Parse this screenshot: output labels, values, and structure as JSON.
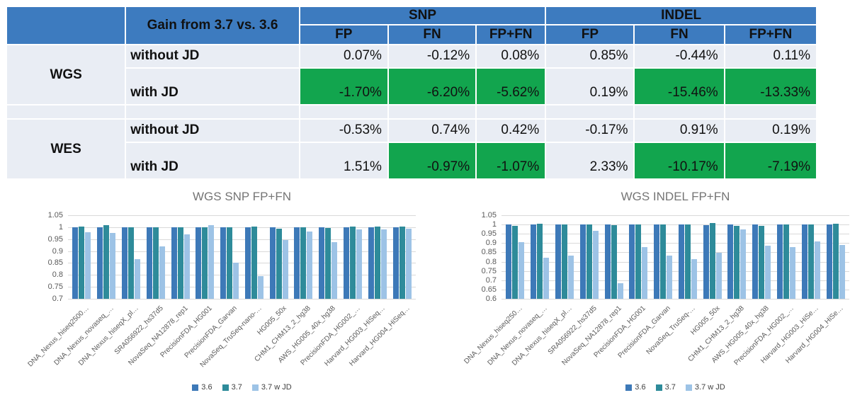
{
  "colors": {
    "header_blue": "#3d7bbf",
    "row_bg": "#e9edf4",
    "highlight_green": "#12a54e",
    "grid": "#d9d9d9",
    "axis_text": "#595959",
    "title_text": "#757575"
  },
  "table": {
    "gain_header": "Gain from 3.7 vs. 3.6",
    "groups": [
      "SNP",
      "INDEL"
    ],
    "subheaders": [
      "FP",
      "FN",
      "FP+FN"
    ],
    "rows": [
      {
        "section": "WGS",
        "condition": "without JD",
        "values": [
          "0.07%",
          "-0.12%",
          "0.08%",
          "0.85%",
          "-0.44%",
          "0.11%"
        ],
        "green": [
          false,
          false,
          false,
          false,
          false,
          false
        ]
      },
      {
        "section": "WGS",
        "condition": "with JD",
        "values": [
          "-1.70%",
          "-6.20%",
          "-5.62%",
          "0.19%",
          "-15.46%",
          "-13.33%"
        ],
        "green": [
          true,
          true,
          true,
          false,
          true,
          true
        ]
      },
      {
        "section": "WES",
        "condition": "without JD",
        "values": [
          "-0.53%",
          "0.74%",
          "0.42%",
          "-0.17%",
          "0.91%",
          "0.19%"
        ],
        "green": [
          false,
          false,
          false,
          false,
          false,
          false
        ]
      },
      {
        "section": "WES",
        "condition": "with JD",
        "values": [
          "1.51%",
          "-0.97%",
          "-1.07%",
          "2.33%",
          "-10.17%",
          "-7.19%"
        ],
        "green": [
          false,
          true,
          true,
          false,
          true,
          true
        ]
      }
    ]
  },
  "chart_data": [
    {
      "type": "bar",
      "title": "WGS SNP FP+FN",
      "ylim": [
        0.7,
        1.05
      ],
      "yticks": [
        "1.05",
        "1",
        "0.95",
        "0.9",
        "0.85",
        "0.8",
        "0.75",
        "0.7"
      ],
      "grid": true,
      "legend_position": "bottom",
      "categories": [
        "DNA_Nexus_hiseq2500…",
        "DNA_Nexus_novaseq_…",
        "DNA_Nexus_hiseqX_pl…",
        "SRA056922_hs37d5",
        "NovaSeq_NA12878_rep1",
        "PrecisionFDA_HG001",
        "PrecisionFDA_Garvan",
        "NovaSeq_TruSeq-nano-…",
        "HG005_50x",
        "CHM1_CHM13_2_hg38",
        "AWS_HG005_40x_hg38",
        "PrecisionFDA_HG002_…",
        "Harvard_HG003_HiSeq…",
        "Harvard_HG004_HiSeq…"
      ],
      "series": [
        {
          "name": "3.6",
          "color": "#3d79b8",
          "values": [
            1.0,
            1.0,
            1.0,
            1.0,
            1.0,
            1.0,
            1.0,
            1.0,
            1.0,
            1.0,
            1.0,
            1.0,
            1.0,
            1.0
          ]
        },
        {
          "name": "3.7",
          "color": "#2e8b9a",
          "values": [
            1.004,
            1.009,
            1.0,
            1.0,
            1.001,
            1.0,
            1.0,
            1.002,
            0.993,
            1.0,
            0.996,
            1.003,
            1.003,
            1.003
          ]
        },
        {
          "name": "3.7 w JD",
          "color": "#9dc3e6",
          "values": [
            0.978,
            0.977,
            0.865,
            0.92,
            0.97,
            1.008,
            0.85,
            0.795,
            0.946,
            0.981,
            0.937,
            0.99,
            0.991,
            0.994
          ]
        }
      ]
    },
    {
      "type": "bar",
      "title": "WGS INDEL FP+FN",
      "ylim": [
        0.6,
        1.05
      ],
      "yticks": [
        "1.05",
        "1",
        "0.95",
        "0.9",
        "0.85",
        "0.8",
        "0.75",
        "0.7",
        "0.65",
        "0.6"
      ],
      "grid": true,
      "legend_position": "bottom",
      "categories": [
        "DNA_Nexus_hiseq250…",
        "DNA_Nexus_novaseq_…",
        "DNA_Nexus_hiseqX_pl…",
        "SRA056922_hs37d5",
        "NovaSeq_NA12878_rep1",
        "PrecisionFDA_HG001",
        "PrecisionFDA_Garvan",
        "NovaSeq_TruSeq-…",
        "HG005_50x",
        "CHM1_CHM13_2_hg38",
        "AWS_HG005_40x_hg38",
        "PrecisionFDA_HG002_…",
        "Harvard_HG003_HiSe…",
        "Harvard_HG004_HiSe…"
      ],
      "series": [
        {
          "name": "3.6",
          "color": "#3d79b8",
          "values": [
            1.0,
            1.0,
            1.0,
            1.0,
            1.0,
            1.0,
            1.0,
            1.0,
            0.997,
            1.0,
            1.0,
            1.0,
            1.0,
            1.0
          ]
        },
        {
          "name": "3.7",
          "color": "#2e8b9a",
          "values": [
            0.993,
            1.005,
            1.0,
            1.0,
            0.998,
            1.0,
            1.0,
            1.0,
            1.008,
            0.994,
            0.991,
            1.0,
            1.0,
            1.006
          ]
        },
        {
          "name": "3.7 w JD",
          "color": "#9dc3e6",
          "values": [
            0.905,
            0.823,
            0.832,
            0.965,
            0.685,
            0.878,
            0.833,
            0.813,
            0.848,
            0.974,
            0.885,
            0.877,
            0.908,
            0.89
          ]
        }
      ]
    }
  ]
}
